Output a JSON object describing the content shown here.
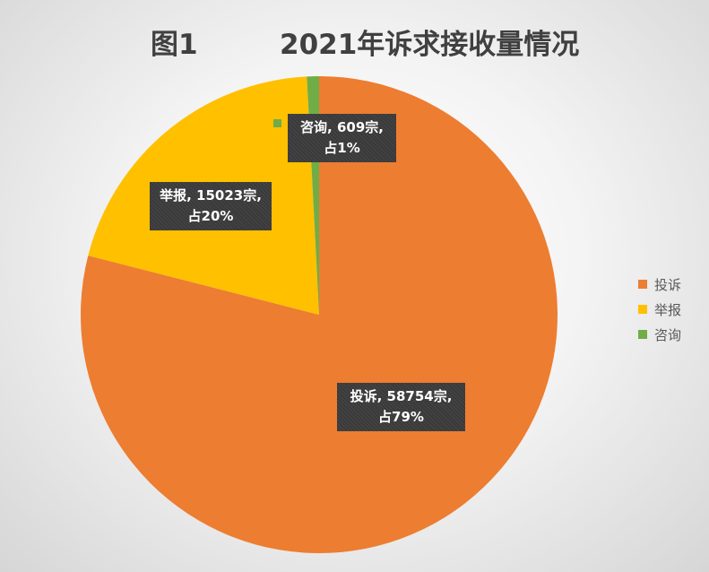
{
  "title": {
    "figure": "图1",
    "main": "2021年诉求接收量情况"
  },
  "chart_data": {
    "type": "pie",
    "title": "2021年诉求接收量情况",
    "categories": [
      "投诉",
      "举报",
      "咨询"
    ],
    "values": [
      58754,
      15023,
      609
    ],
    "percents": [
      "79%",
      "20%",
      "1%"
    ],
    "colors": [
      "#ED7D31",
      "#FFC000",
      "#70AD47"
    ],
    "unit": "宗",
    "start_angle_deg": 0,
    "direction": "clockwise",
    "legend_position": "right",
    "data_labels": [
      {
        "line1": "投诉, 58754宗,",
        "line2": "占79%"
      },
      {
        "line1": "举报, 15023宗,",
        "line2": "占20%"
      },
      {
        "line1": "咨询, 609宗,",
        "line2": "占1%"
      }
    ]
  },
  "legend": {
    "items": [
      {
        "label": "投诉",
        "color": "#ED7D31"
      },
      {
        "label": "举报",
        "color": "#FFC000"
      },
      {
        "label": "咨询",
        "color": "#70AD47"
      }
    ]
  }
}
